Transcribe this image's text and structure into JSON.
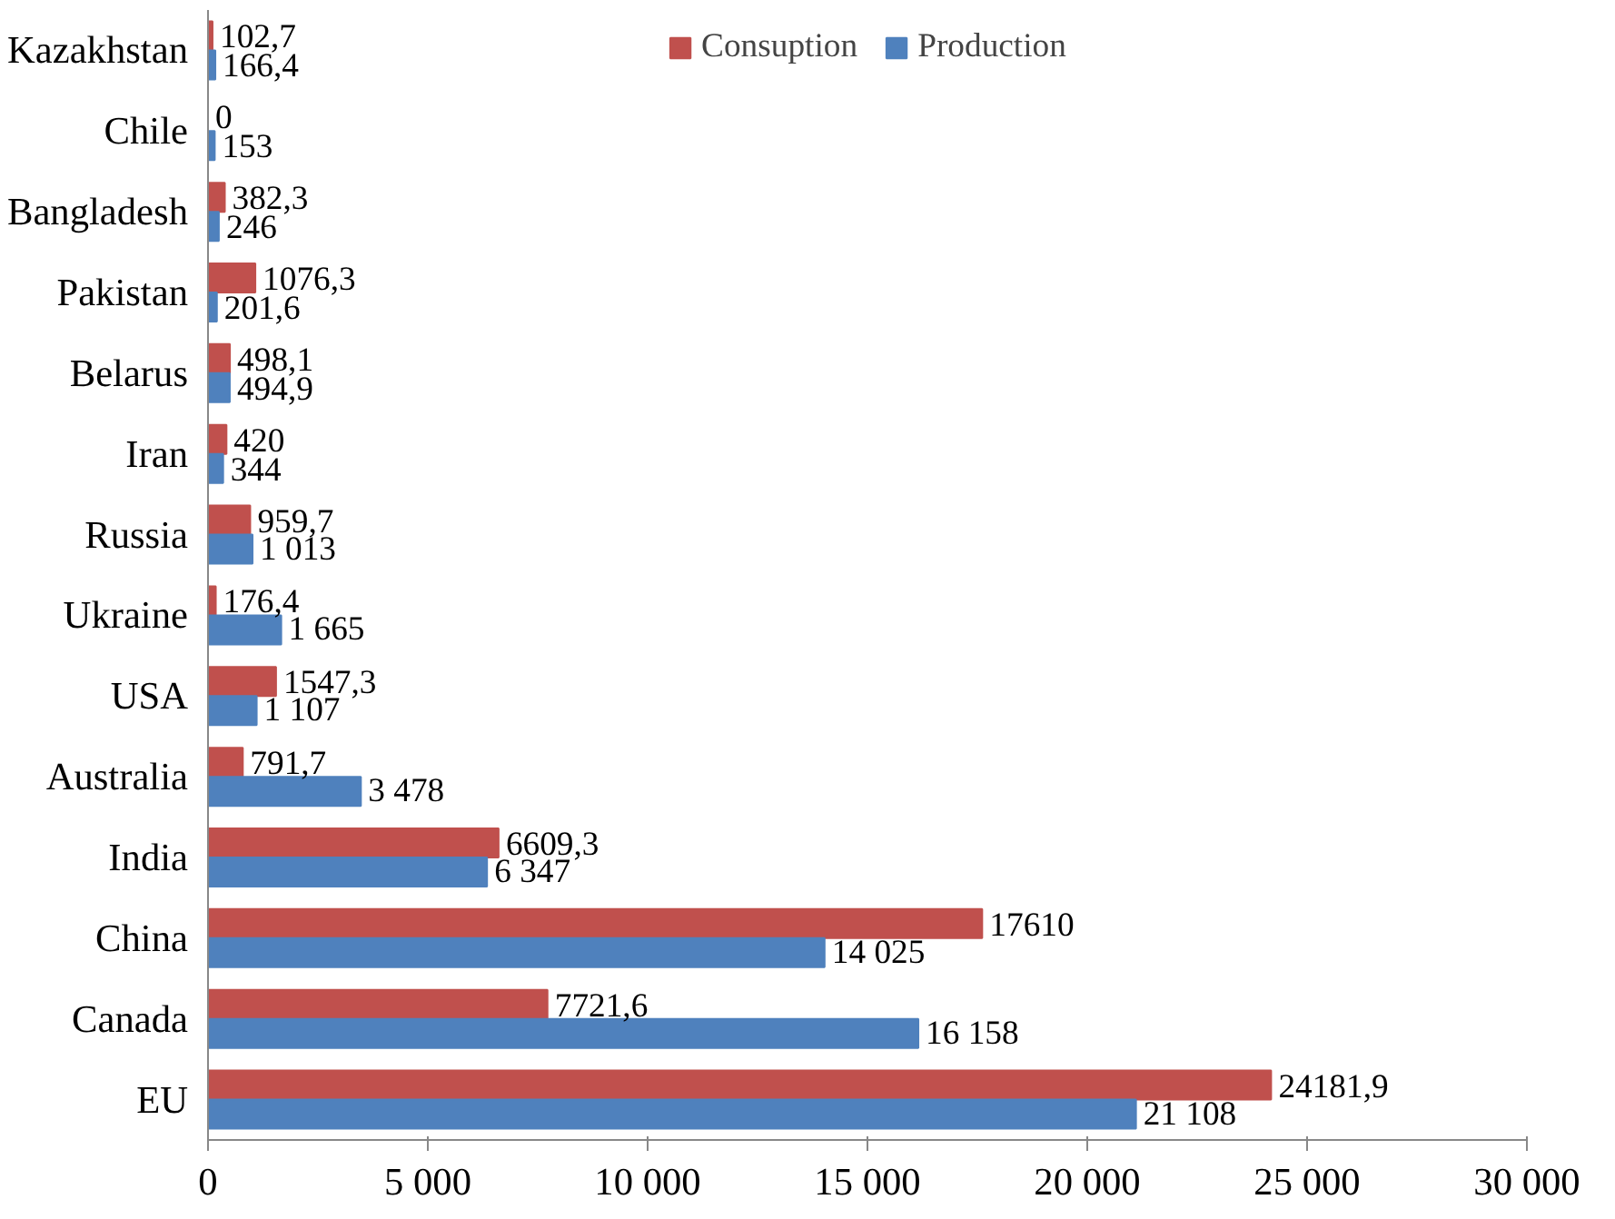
{
  "chart_data": {
    "type": "bar",
    "orientation": "horizontal",
    "categories": [
      "Kazakhstan",
      "Chile",
      "Bangladesh",
      "Pakistan",
      "Belarus",
      "Iran",
      "Russia",
      "Ukraine",
      "USA",
      "Australia",
      "India",
      "China",
      "Canada",
      "EU"
    ],
    "series": [
      {
        "name": "Consuption",
        "color": "#c0504d",
        "values": [
          102.7,
          0,
          382.3,
          1076.3,
          498.1,
          420,
          959.7,
          176.4,
          1547.3,
          791.7,
          6609.3,
          17610,
          7721.6,
          24181.9
        ],
        "value_labels": [
          "102,7",
          "0",
          "382,3",
          "1076,3",
          "498,1",
          "420",
          "959,7",
          "176,4",
          "1547,3",
          "791,7",
          "6609,3",
          "17610",
          "7721,6",
          "24181,9"
        ]
      },
      {
        "name": "Production",
        "color": "#4f81bd",
        "values": [
          166.4,
          153,
          246,
          201.6,
          494.9,
          344,
          1013,
          1665,
          1107,
          3478,
          6347,
          14025,
          16158,
          21108
        ],
        "value_labels": [
          "166,4",
          "153",
          "246",
          "201,6",
          "494,9",
          "344",
          "1 013",
          "1 665",
          "1 107",
          "3 478",
          "6 347",
          "14 025",
          "16 158",
          "21 108"
        ]
      }
    ],
    "xlim": [
      0,
      30000
    ],
    "xticks": [
      0,
      {
        "value": 5000,
        "label": "5 000"
      },
      {
        "value": 10000,
        "label": "10 000"
      },
      {
        "value": 15000,
        "label": "15 000"
      },
      {
        "value": 20000,
        "label": "20 000"
      },
      {
        "value": 25000,
        "label": "25 000"
      },
      {
        "value": 30000,
        "label": "30 000"
      }
    ],
    "legend": "top",
    "grid": false
  }
}
